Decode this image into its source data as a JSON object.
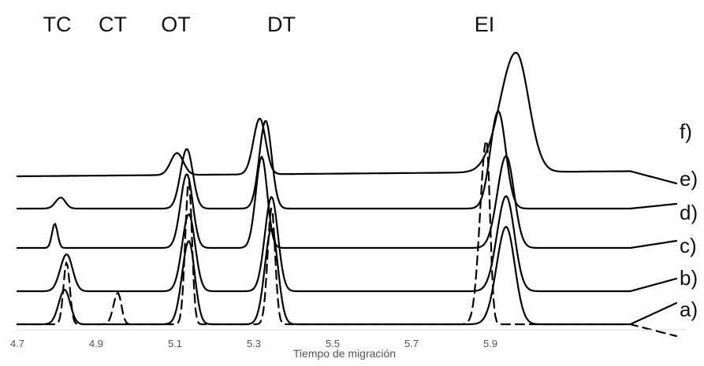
{
  "chart_data": {
    "type": "line",
    "title": "",
    "xlabel": "Tiempo de migración",
    "ylabel": "",
    "xlim": [
      4.7,
      6.1
    ],
    "xticks": [
      "4.7",
      "4.9",
      "5.1",
      "5.3",
      "5.5",
      "5.7",
      "5.9"
    ],
    "grid": false,
    "legend": "none",
    "peak_labels": [
      {
        "text": "TC",
        "x": 4.795
      },
      {
        "text": "CT",
        "x": 4.96
      },
      {
        "text": "OT",
        "x": 5.12
      },
      {
        "text": "DT",
        "x": 5.32
      },
      {
        "text": "EI",
        "x": 5.935
      }
    ],
    "series": [
      {
        "label": "a)",
        "style": "dashed",
        "baseline": 0,
        "peaks": [
          {
            "x": 4.825,
            "h": 79,
            "sl": 0.008,
            "sr": 0.008
          },
          {
            "x": 4.955,
            "h": 40,
            "sl": 0.011,
            "sr": 0.009
          },
          {
            "x": 5.135,
            "h": 183,
            "sl": 0.009,
            "sr": 0.008
          },
          {
            "x": 5.345,
            "h": 148,
            "sl": 0.01,
            "sr": 0.009
          },
          {
            "x": 5.89,
            "h": 235,
            "sl": 0.016,
            "sr": 0.009
          }
        ],
        "ends": [
          0,
          -15
        ]
      },
      {
        "label": "b)",
        "style": "solid",
        "baseline": 0,
        "peaks": [
          {
            "x": 4.82,
            "h": 44,
            "sl": 0.015,
            "sr": 0.014
          },
          {
            "x": 5.135,
            "h": 106,
            "sl": 0.017,
            "sr": 0.015
          },
          {
            "x": 5.345,
            "h": 122,
            "sl": 0.017,
            "sr": 0.016
          },
          {
            "x": 5.94,
            "h": 124,
            "sl": 0.024,
            "sr": 0.022
          }
        ],
        "ends": [
          0,
          27
        ]
      },
      {
        "label": "c)",
        "style": "solid",
        "baseline": 42,
        "peaks": [
          {
            "x": 4.825,
            "h": 47,
            "sl": 0.016,
            "sr": 0.015
          },
          {
            "x": 5.135,
            "h": 98,
            "sl": 0.017,
            "sr": 0.016
          },
          {
            "x": 5.345,
            "h": 120,
            "sl": 0.017,
            "sr": 0.016
          },
          {
            "x": 5.94,
            "h": 121,
            "sl": 0.023,
            "sr": 0.021
          }
        ],
        "ends": [
          0,
          16
        ]
      },
      {
        "label": "d)",
        "style": "solid",
        "baseline": 97,
        "peaks": [
          {
            "x": 4.795,
            "h": 31,
            "sl": 0.007,
            "sr": 0.007
          },
          {
            "x": 5.13,
            "h": 94,
            "sl": 0.016,
            "sr": 0.015
          },
          {
            "x": 5.32,
            "h": 116,
            "sl": 0.015,
            "sr": 0.014
          },
          {
            "x": 5.94,
            "h": 117,
            "sl": 0.022,
            "sr": 0.02
          }
        ],
        "ends": [
          0,
          9
        ]
      },
      {
        "label": "e)",
        "style": "solid",
        "baseline": 147,
        "peaks": [
          {
            "x": 4.81,
            "h": 14,
            "sl": 0.013,
            "sr": 0.012
          },
          {
            "x": 5.13,
            "h": 76,
            "sl": 0.016,
            "sr": 0.015
          },
          {
            "x": 5.33,
            "h": 112,
            "sl": 0.016,
            "sr": 0.015
          },
          {
            "x": 5.92,
            "h": 124,
            "sl": 0.02,
            "sr": 0.019
          }
        ],
        "ends": [
          0,
          6
        ]
      },
      {
        "label": "f)",
        "style": "solid",
        "baseline": 195,
        "peaks": [
          {
            "x": 5.105,
            "h": 28,
            "sl": 0.016,
            "sr": 0.016
          },
          {
            "x": 5.315,
            "h": 71,
            "sl": 0.016,
            "sr": 0.015
          },
          {
            "x": 5.965,
            "h": 152,
            "sl": 0.04,
            "sr": 0.032
          }
        ],
        "ends": [
          -7,
          -16
        ]
      }
    ]
  }
}
